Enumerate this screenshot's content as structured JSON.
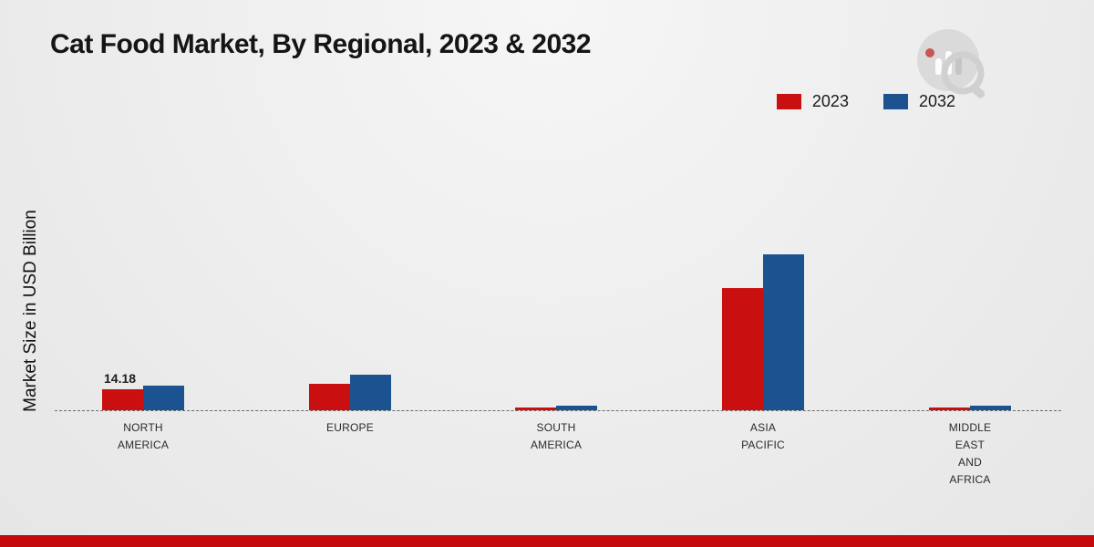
{
  "title": "Cat Food Market, By Regional, 2023 & 2032",
  "y_axis_label": "Market Size in USD Billion",
  "legend": [
    {
      "label": "2023",
      "color": "#c90f0f"
    },
    {
      "label": "2032",
      "color": "#1b5390"
    }
  ],
  "colors": {
    "series_2023": "#c90f0f",
    "series_2032": "#1b5390",
    "baseline": "#6a6a6a",
    "footer": "#c40a0a"
  },
  "chart_data": {
    "type": "bar",
    "categories": [
      "North America",
      "Europe",
      "South America",
      "Asia Pacific",
      "Middle East and Africa"
    ],
    "category_display": [
      "NORTH\nAMERICA",
      "EUROPE",
      "SOUTH\nAMERICA",
      "ASIA\nPACIFIC",
      "MIDDLE\nEAST\nAND\nAFRICA"
    ],
    "series": [
      {
        "name": "2023",
        "color": "#c90f0f",
        "values": [
          14.18,
          17.5,
          1.9,
          82.0,
          1.6
        ]
      },
      {
        "name": "2032",
        "color": "#1b5390",
        "values": [
          16.8,
          24.0,
          3.0,
          105.0,
          3.3
        ]
      }
    ],
    "title": "Cat Food Market, By Regional, 2023 & 2032",
    "xlabel": "",
    "ylabel": "Market Size in USD Billion",
    "ylim": [
      0,
      110
    ],
    "grid": false,
    "legend_position": "top-right",
    "annotations": [
      {
        "series_index": 0,
        "category_index": 0,
        "text": "14.18"
      }
    ]
  }
}
